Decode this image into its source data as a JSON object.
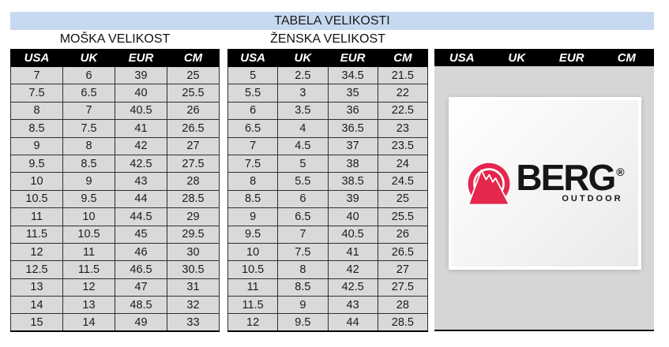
{
  "banner": {
    "title": "TABELA VELIKOSTI"
  },
  "columns": [
    "USA",
    "UK",
    "EUR",
    "CM"
  ],
  "mens": {
    "title": "MOŠKA VELIKOST",
    "rows": [
      [
        "7",
        "6",
        "39",
        "25"
      ],
      [
        "7.5",
        "6.5",
        "40",
        "25.5"
      ],
      [
        "8",
        "7",
        "40.5",
        "26"
      ],
      [
        "8.5",
        "7.5",
        "41",
        "26.5"
      ],
      [
        "9",
        "8",
        "42",
        "27"
      ],
      [
        "9.5",
        "8.5",
        "42.5",
        "27.5"
      ],
      [
        "10",
        "9",
        "43",
        "28"
      ],
      [
        "10.5",
        "9.5",
        "44",
        "28.5"
      ],
      [
        "11",
        "10",
        "44.5",
        "29"
      ],
      [
        "11.5",
        "10.5",
        "45",
        "29.5"
      ],
      [
        "12",
        "11",
        "46",
        "30"
      ],
      [
        "12.5",
        "11.5",
        "46.5",
        "30.5"
      ],
      [
        "13",
        "12",
        "47",
        "31"
      ],
      [
        "14",
        "13",
        "48.5",
        "32"
      ],
      [
        "15",
        "14",
        "49",
        "33"
      ]
    ]
  },
  "womens": {
    "title": "ŽENSKA VELIKOST",
    "rows": [
      [
        "5",
        "2.5",
        "34.5",
        "21.5"
      ],
      [
        "5.5",
        "3",
        "35",
        "22"
      ],
      [
        "6",
        "3.5",
        "36",
        "22.5"
      ],
      [
        "6.5",
        "4",
        "36.5",
        "23"
      ],
      [
        "7",
        "4.5",
        "37",
        "23.5"
      ],
      [
        "7.5",
        "5",
        "38",
        "24"
      ],
      [
        "8",
        "5.5",
        "38.5",
        "24.5"
      ],
      [
        "8.5",
        "6",
        "39",
        "25"
      ],
      [
        "9",
        "6.5",
        "40",
        "25.5"
      ],
      [
        "9.5",
        "7",
        "40.5",
        "26"
      ],
      [
        "10",
        "7.5",
        "41",
        "26.5"
      ],
      [
        "10.5",
        "8",
        "42",
        "27"
      ],
      [
        "11",
        "8.5",
        "42.5",
        "27.5"
      ],
      [
        "11.5",
        "9",
        "43",
        "28"
      ],
      [
        "12",
        "9.5",
        "44",
        "28.5"
      ]
    ]
  },
  "brand_panel": {
    "columns": [
      "USA",
      "UK",
      "EUR",
      "CM"
    ],
    "logo": {
      "name": "BERG",
      "registered": "®",
      "subtitle": "OUTDOOR"
    }
  },
  "colors": {
    "banner_bg": "#c6d9f0",
    "header_bg": "#000000",
    "header_text": "#ffffff",
    "cell_bg": "#d9d9d9",
    "panel_bg": "#d6d6d6",
    "logo_red": "#e5264d"
  }
}
